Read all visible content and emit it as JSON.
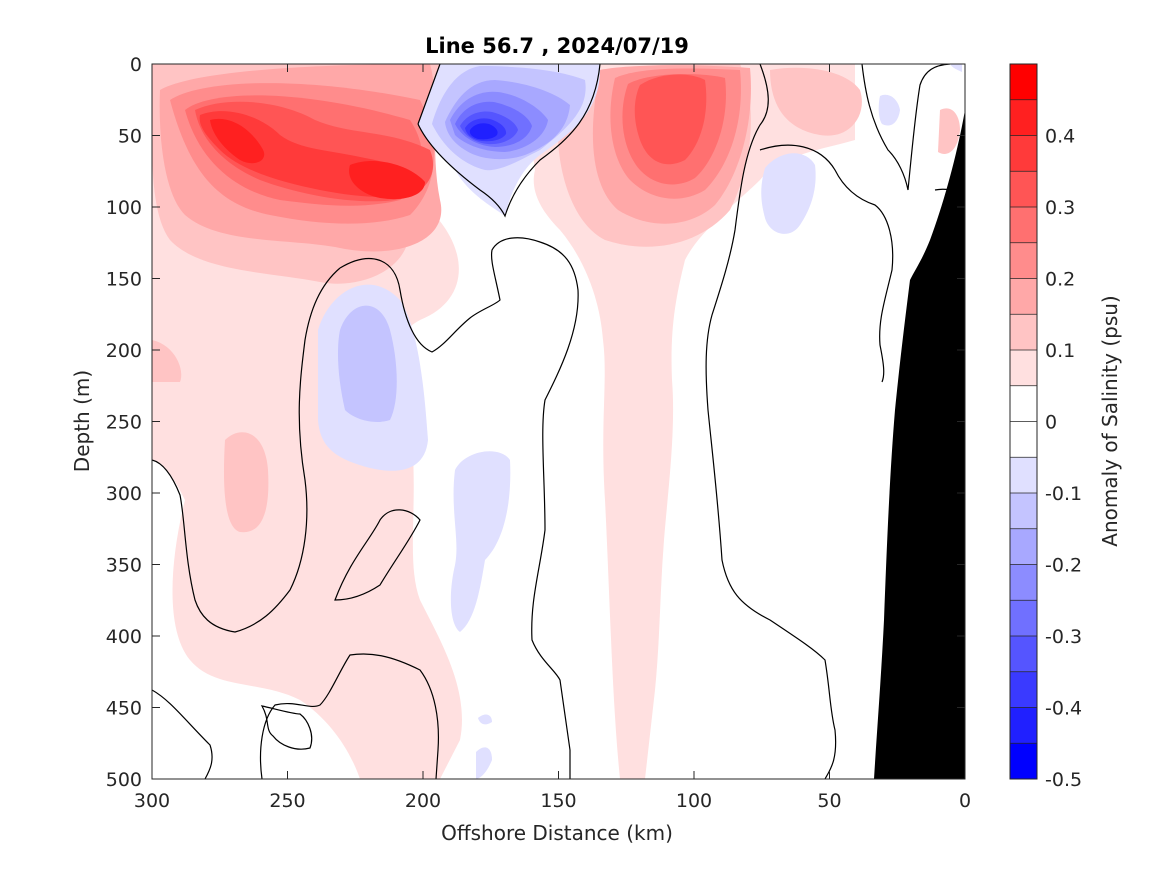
{
  "chart_data": {
    "type": "heatmap",
    "title": "Line 56.7 , 2024/07/19",
    "xlabel": "Offshore Distance (km)",
    "ylabel": "Depth (m)",
    "xlim": [
      300,
      0
    ],
    "ylim": [
      500,
      0
    ],
    "x_ticks": [
      "300",
      "250",
      "200",
      "150",
      "100",
      "50",
      "0"
    ],
    "y_ticks": [
      "0",
      "50",
      "100",
      "150",
      "200",
      "250",
      "300",
      "350",
      "400",
      "450",
      "500"
    ],
    "colorbar": {
      "label": "Anomaly of Salinity (psu)",
      "range": [
        -0.5,
        0.5
      ],
      "tick_labels": [
        "0.4",
        "0.3",
        "0.2",
        "0.1",
        "0",
        "-0.1",
        "-0.2",
        "-0.3",
        "-0.4",
        "-0.5"
      ],
      "levels": [
        0.5,
        0.45,
        0.4,
        0.35,
        0.3,
        0.25,
        0.2,
        0.15,
        0.1,
        0.05,
        0,
        -0.05,
        -0.1,
        -0.15,
        -0.2,
        -0.25,
        -0.3,
        -0.35,
        -0.4,
        -0.45,
        -0.5
      ],
      "colors": [
        "#ff0000",
        "#ff2020",
        "#ff3a3a",
        "#ff5555",
        "#ff7070",
        "#ff8c8c",
        "#ffa8a8",
        "#ffc4c4",
        "#ffe0e0",
        "#ffffff",
        "#ffffff",
        "#e0e0ff",
        "#c4c4ff",
        "#a8a8ff",
        "#8c8cff",
        "#7070ff",
        "#5555ff",
        "#3a3aff",
        "#2020ff",
        "#0000ff"
      ]
    },
    "features": [
      {
        "name": "surface-high-salinity-west",
        "value": 0.45,
        "x_range": [
          300,
          195
        ],
        "depth_range": [
          0,
          150
        ]
      },
      {
        "name": "low-salinity-core",
        "value": -0.45,
        "center": [
          178,
          45
        ]
      },
      {
        "name": "surface-high-salinity-east",
        "value": 0.35,
        "x_range": [
          140,
          90
        ],
        "depth_range": [
          0,
          120
        ]
      },
      {
        "name": "subsurface-low-salinity",
        "value": -0.15,
        "center": [
          220,
          210
        ]
      },
      {
        "name": "deep-low-salinity",
        "value": -0.1,
        "center": [
          175,
          330
        ]
      },
      {
        "name": "coastal-low-salinity",
        "value": -0.1,
        "center": [
          60,
          90
        ]
      },
      {
        "name": "bathymetry",
        "value": null,
        "color": "#000000",
        "description": "seafloor mask"
      }
    ]
  }
}
